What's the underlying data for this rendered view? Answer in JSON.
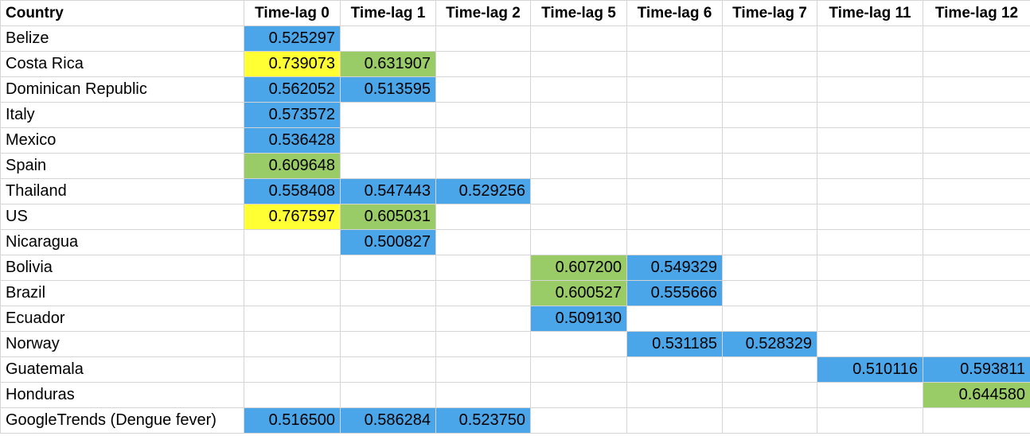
{
  "colors": {
    "blue": "#4aa6e8",
    "green": "#99cc66",
    "yellow": "#ffff33",
    "gridline": "#d4d4d4"
  },
  "headers": [
    "Country",
    "Time-lag 0",
    "Time-lag 1",
    "Time-lag 2",
    "Time-lag 5",
    "Time-lag 6",
    "Time-lag 7",
    "Time-lag 11",
    "Time-lag 12"
  ],
  "rows": [
    {
      "country": "Belize",
      "cells": [
        {
          "v": "0.525297",
          "c": "blue"
        },
        {
          "v": "",
          "c": ""
        },
        {
          "v": "",
          "c": ""
        },
        {
          "v": "",
          "c": ""
        },
        {
          "v": "",
          "c": ""
        },
        {
          "v": "",
          "c": ""
        },
        {
          "v": "",
          "c": ""
        },
        {
          "v": "",
          "c": ""
        }
      ]
    },
    {
      "country": "Costa Rica",
      "cells": [
        {
          "v": "0.739073",
          "c": "yellow"
        },
        {
          "v": "0.631907",
          "c": "green"
        },
        {
          "v": "",
          "c": ""
        },
        {
          "v": "",
          "c": ""
        },
        {
          "v": "",
          "c": ""
        },
        {
          "v": "",
          "c": ""
        },
        {
          "v": "",
          "c": ""
        },
        {
          "v": "",
          "c": ""
        }
      ]
    },
    {
      "country": "Dominican Republic",
      "cells": [
        {
          "v": "0.562052",
          "c": "blue"
        },
        {
          "v": "0.513595",
          "c": "blue"
        },
        {
          "v": "",
          "c": ""
        },
        {
          "v": "",
          "c": ""
        },
        {
          "v": "",
          "c": ""
        },
        {
          "v": "",
          "c": ""
        },
        {
          "v": "",
          "c": ""
        },
        {
          "v": "",
          "c": ""
        }
      ]
    },
    {
      "country": "Italy",
      "cells": [
        {
          "v": "0.573572",
          "c": "blue"
        },
        {
          "v": "",
          "c": ""
        },
        {
          "v": "",
          "c": ""
        },
        {
          "v": "",
          "c": ""
        },
        {
          "v": "",
          "c": ""
        },
        {
          "v": "",
          "c": ""
        },
        {
          "v": "",
          "c": ""
        },
        {
          "v": "",
          "c": ""
        }
      ]
    },
    {
      "country": "Mexico",
      "cells": [
        {
          "v": "0.536428",
          "c": "blue"
        },
        {
          "v": "",
          "c": ""
        },
        {
          "v": "",
          "c": ""
        },
        {
          "v": "",
          "c": ""
        },
        {
          "v": "",
          "c": ""
        },
        {
          "v": "",
          "c": ""
        },
        {
          "v": "",
          "c": ""
        },
        {
          "v": "",
          "c": ""
        }
      ]
    },
    {
      "country": "Spain",
      "cells": [
        {
          "v": "0.609648",
          "c": "green"
        },
        {
          "v": "",
          "c": ""
        },
        {
          "v": "",
          "c": ""
        },
        {
          "v": "",
          "c": ""
        },
        {
          "v": "",
          "c": ""
        },
        {
          "v": "",
          "c": ""
        },
        {
          "v": "",
          "c": ""
        },
        {
          "v": "",
          "c": ""
        }
      ]
    },
    {
      "country": "Thailand",
      "cells": [
        {
          "v": "0.558408",
          "c": "blue"
        },
        {
          "v": "0.547443",
          "c": "blue"
        },
        {
          "v": "0.529256",
          "c": "blue"
        },
        {
          "v": "",
          "c": ""
        },
        {
          "v": "",
          "c": ""
        },
        {
          "v": "",
          "c": ""
        },
        {
          "v": "",
          "c": ""
        },
        {
          "v": "",
          "c": ""
        }
      ]
    },
    {
      "country": "US",
      "cells": [
        {
          "v": "0.767597",
          "c": "yellow"
        },
        {
          "v": "0.605031",
          "c": "green"
        },
        {
          "v": "",
          "c": ""
        },
        {
          "v": "",
          "c": ""
        },
        {
          "v": "",
          "c": ""
        },
        {
          "v": "",
          "c": ""
        },
        {
          "v": "",
          "c": ""
        },
        {
          "v": "",
          "c": ""
        }
      ]
    },
    {
      "country": "Nicaragua",
      "cells": [
        {
          "v": "",
          "c": ""
        },
        {
          "v": "0.500827",
          "c": "blue"
        },
        {
          "v": "",
          "c": ""
        },
        {
          "v": "",
          "c": ""
        },
        {
          "v": "",
          "c": ""
        },
        {
          "v": "",
          "c": ""
        },
        {
          "v": "",
          "c": ""
        },
        {
          "v": "",
          "c": ""
        }
      ]
    },
    {
      "country": "Bolivia",
      "cells": [
        {
          "v": "",
          "c": ""
        },
        {
          "v": "",
          "c": ""
        },
        {
          "v": "",
          "c": ""
        },
        {
          "v": "0.607200",
          "c": "green"
        },
        {
          "v": "0.549329",
          "c": "blue"
        },
        {
          "v": "",
          "c": ""
        },
        {
          "v": "",
          "c": ""
        },
        {
          "v": "",
          "c": ""
        }
      ]
    },
    {
      "country": "Brazil",
      "cells": [
        {
          "v": "",
          "c": ""
        },
        {
          "v": "",
          "c": ""
        },
        {
          "v": "",
          "c": ""
        },
        {
          "v": "0.600527",
          "c": "green"
        },
        {
          "v": "0.555666",
          "c": "blue"
        },
        {
          "v": "",
          "c": ""
        },
        {
          "v": "",
          "c": ""
        },
        {
          "v": "",
          "c": ""
        }
      ]
    },
    {
      "country": "Ecuador",
      "cells": [
        {
          "v": "",
          "c": ""
        },
        {
          "v": "",
          "c": ""
        },
        {
          "v": "",
          "c": ""
        },
        {
          "v": "0.509130",
          "c": "blue"
        },
        {
          "v": "",
          "c": ""
        },
        {
          "v": "",
          "c": ""
        },
        {
          "v": "",
          "c": ""
        },
        {
          "v": "",
          "c": ""
        }
      ]
    },
    {
      "country": "Norway",
      "cells": [
        {
          "v": "",
          "c": ""
        },
        {
          "v": "",
          "c": ""
        },
        {
          "v": "",
          "c": ""
        },
        {
          "v": "",
          "c": ""
        },
        {
          "v": "0.531185",
          "c": "blue"
        },
        {
          "v": "0.528329",
          "c": "blue"
        },
        {
          "v": "",
          "c": ""
        },
        {
          "v": "",
          "c": ""
        }
      ]
    },
    {
      "country": "Guatemala",
      "cells": [
        {
          "v": "",
          "c": ""
        },
        {
          "v": "",
          "c": ""
        },
        {
          "v": "",
          "c": ""
        },
        {
          "v": "",
          "c": ""
        },
        {
          "v": "",
          "c": ""
        },
        {
          "v": "",
          "c": ""
        },
        {
          "v": "0.510116",
          "c": "blue"
        },
        {
          "v": "0.593811",
          "c": "blue"
        }
      ]
    },
    {
      "country": "Honduras",
      "cells": [
        {
          "v": "",
          "c": ""
        },
        {
          "v": "",
          "c": ""
        },
        {
          "v": "",
          "c": ""
        },
        {
          "v": "",
          "c": ""
        },
        {
          "v": "",
          "c": ""
        },
        {
          "v": "",
          "c": ""
        },
        {
          "v": "",
          "c": ""
        },
        {
          "v": "0.644580",
          "c": "green"
        }
      ]
    },
    {
      "country": "GoogleTrends (Dengue fever)",
      "cells": [
        {
          "v": "0.516500",
          "c": "blue"
        },
        {
          "v": "0.586284",
          "c": "blue"
        },
        {
          "v": "0.523750",
          "c": "blue"
        },
        {
          "v": "",
          "c": ""
        },
        {
          "v": "",
          "c": ""
        },
        {
          "v": "",
          "c": ""
        },
        {
          "v": "",
          "c": ""
        },
        {
          "v": "",
          "c": ""
        }
      ]
    }
  ]
}
